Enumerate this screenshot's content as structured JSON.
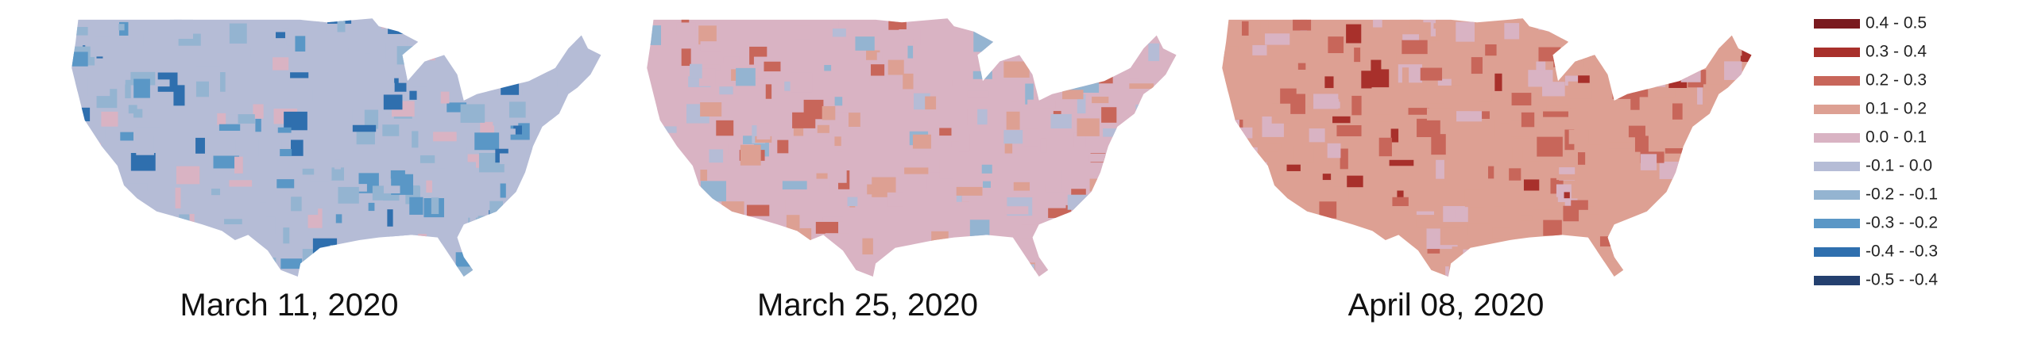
{
  "maps": [
    {
      "caption": "March 11, 2020"
    },
    {
      "caption": "March 25, 2020"
    },
    {
      "caption": "April 08, 2020"
    }
  ],
  "legend": {
    "items": [
      {
        "label": "0.4 - 0.5",
        "color": "#7a1a1f"
      },
      {
        "label": "0.3 - 0.4",
        "color": "#a8302b"
      },
      {
        "label": "0.2 - 0.3",
        "color": "#c8665a"
      },
      {
        "label": "0.1 - 0.2",
        "color": "#dda093"
      },
      {
        "label": "0.0 - 0.1",
        "color": "#d9b3c3"
      },
      {
        "label": "-0.1 - 0.0",
        "color": "#b5bcd6"
      },
      {
        "label": "-0.2 - -0.1",
        "color": "#94b4d1"
      },
      {
        "label": "-0.3 - -0.2",
        "color": "#5a97c6"
      },
      {
        "label": "-0.4 - -0.3",
        "color": "#2f6fae"
      },
      {
        "label": "-0.5 - -0.4",
        "color": "#24406f"
      }
    ]
  }
}
